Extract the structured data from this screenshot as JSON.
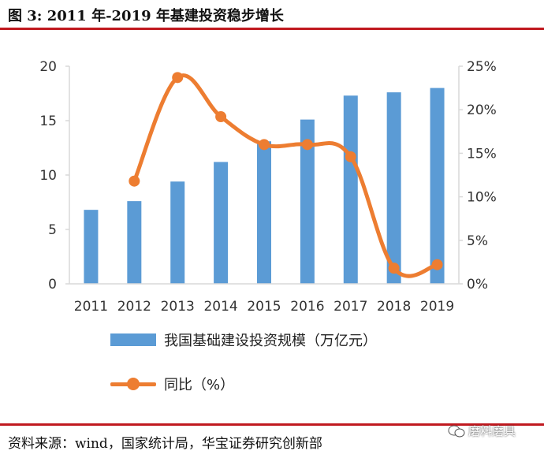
{
  "figure": {
    "title": "图 3: 2011 年-2019 年基建投资稳步增长",
    "source": "资料来源：wind，国家统计局，华宝证券研究创新部",
    "watermark": "磨料磨具"
  },
  "colors": {
    "bar": "#5b9bd5",
    "line": "#ed7d31",
    "axis": "#d9d9d9",
    "rule": "#c0191f"
  },
  "chart_data": {
    "type": "bar+line",
    "categories": [
      "2011",
      "2012",
      "2013",
      "2014",
      "2015",
      "2016",
      "2017",
      "2018",
      "2019"
    ],
    "series": [
      {
        "name": "我国基础建设投资规模（万亿元）",
        "type": "bar",
        "axis": "left",
        "values": [
          6.8,
          7.6,
          9.4,
          11.2,
          13.1,
          15.1,
          17.3,
          17.6,
          18.0
        ]
      },
      {
        "name": "同比（%）",
        "type": "line",
        "axis": "right",
        "values": [
          null,
          11.8,
          23.7,
          19.2,
          16.0,
          16.0,
          14.6,
          1.8,
          2.2
        ]
      }
    ],
    "left_axis": {
      "min": 0,
      "max": 20,
      "ticks": [
        "0",
        "5",
        "10",
        "15",
        "20"
      ]
    },
    "right_axis": {
      "min": 0,
      "max": 25,
      "ticks": [
        "0%",
        "5%",
        "10%",
        "15%",
        "20%",
        "25%"
      ]
    },
    "legend": {
      "bar_label": "我国基础建设投资规模（万亿元）",
      "line_label": "同比（%）",
      "position": "bottom-left"
    }
  }
}
